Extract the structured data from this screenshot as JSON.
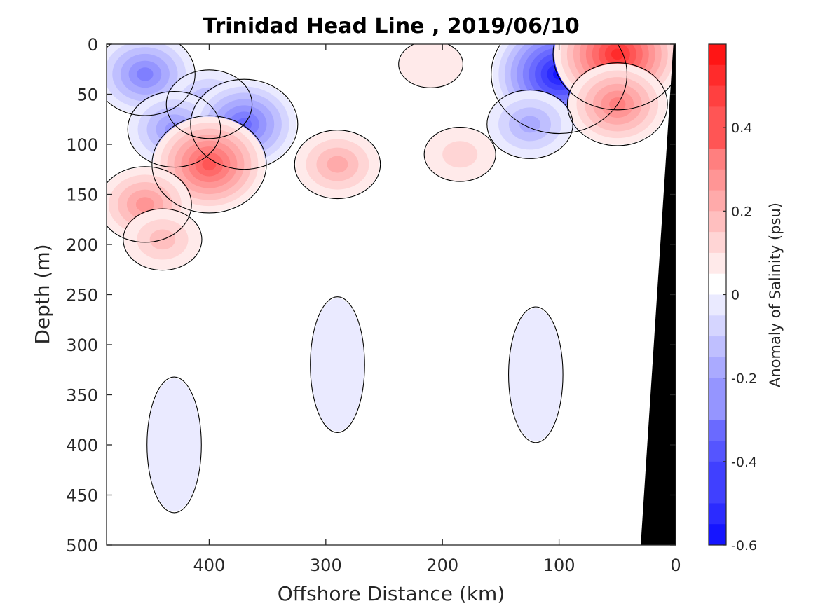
{
  "chart_data": {
    "type": "heatmap",
    "title": "Trinidad Head Line , 2019/06/10",
    "xlabel": "Offshore Distance (km)",
    "ylabel": "Depth (m)",
    "xlim": [
      488,
      0
    ],
    "ylim": [
      0,
      500
    ],
    "x_reversed": true,
    "y_reversed": true,
    "x_ticks": [
      400,
      300,
      200,
      100,
      0
    ],
    "y_ticks": [
      0,
      50,
      100,
      150,
      200,
      250,
      300,
      350,
      400,
      450,
      500
    ],
    "colorbar": {
      "label": "Anomaly of Salinity (psu)",
      "range": [
        -0.6,
        0.6
      ],
      "levels_step": 0.05,
      "ticks": [
        -0.6,
        -0.4,
        -0.2,
        0,
        0.2,
        0.4
      ],
      "tick_labels": [
        "-0.6",
        "-0.4",
        "-0.2",
        "0",
        "0.2",
        "0.4"
      ],
      "colormap": "blue-white-red",
      "neg_color": "#0000ff",
      "zero_color": "#ffffff",
      "pos_color": "#ff0000"
    },
    "bathymetry_color": "#000000",
    "zero_contour_color": "#000000",
    "anomaly_features": [
      {
        "sign": "negative",
        "x": 455,
        "depth": 30,
        "value": -0.3
      },
      {
        "sign": "negative",
        "x": 400,
        "depth": 60,
        "value": -0.2
      },
      {
        "sign": "negative",
        "x": 430,
        "depth": 85,
        "value": -0.25
      },
      {
        "sign": "negative",
        "x": 370,
        "depth": 80,
        "value": -0.35
      },
      {
        "sign": "negative",
        "x": 100,
        "depth": 30,
        "value": -0.55
      },
      {
        "sign": "negative",
        "x": 125,
        "depth": 80,
        "value": -0.2
      },
      {
        "sign": "negative",
        "x": 290,
        "depth": 320,
        "value": -0.05
      },
      {
        "sign": "negative",
        "x": 120,
        "depth": 330,
        "value": -0.05
      },
      {
        "sign": "negative",
        "x": 430,
        "depth": 400,
        "value": -0.05
      },
      {
        "sign": "positive",
        "x": 400,
        "depth": 120,
        "value": 0.4
      },
      {
        "sign": "positive",
        "x": 455,
        "depth": 160,
        "value": 0.25
      },
      {
        "sign": "positive",
        "x": 290,
        "depth": 120,
        "value": 0.2
      },
      {
        "sign": "positive",
        "x": 50,
        "depth": 10,
        "value": 0.5
      },
      {
        "sign": "positive",
        "x": 50,
        "depth": 60,
        "value": 0.3
      },
      {
        "sign": "positive",
        "x": 185,
        "depth": 110,
        "value": 0.1
      },
      {
        "sign": "positive",
        "x": 440,
        "depth": 195,
        "value": 0.15
      },
      {
        "sign": "positive",
        "x": 210,
        "depth": 20,
        "value": 0.05
      }
    ]
  }
}
